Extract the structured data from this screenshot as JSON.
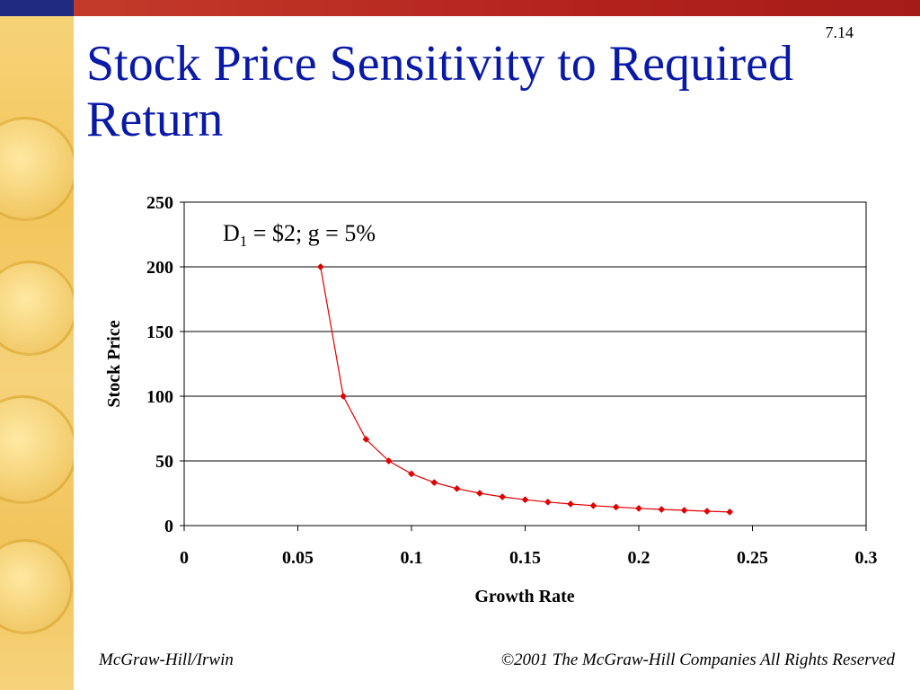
{
  "slide": {
    "number": "7.14",
    "title": "Stock Price Sensitivity to Required Return",
    "footer_left": "McGraw-Hill/Irwin",
    "footer_right": "©2001 The McGraw-Hill Companies All Rights Reserved"
  },
  "colors": {
    "title": "#0a1aa8",
    "top_bar": "#b3231d",
    "corner": "#1f2a80",
    "side_band": "#f3c55b",
    "series": "#e00000"
  },
  "chart_data": {
    "type": "scatter",
    "title": "",
    "annotation": {
      "main_before": "D",
      "subscript": "1",
      "main_after": " = $2; g = 5%"
    },
    "xlabel": "Growth Rate",
    "ylabel": "Stock Price",
    "xlim": [
      0,
      0.3
    ],
    "ylim": [
      0,
      250
    ],
    "x_ticks": [
      0,
      0.05,
      0.1,
      0.15,
      0.2,
      0.25,
      0.3
    ],
    "x_tick_labels": [
      "0",
      "0.05",
      "0.1",
      "0.15",
      "0.2",
      "0.25",
      "0.3"
    ],
    "y_ticks": [
      0,
      50,
      100,
      150,
      200,
      250
    ],
    "y_tick_labels": [
      "0",
      "50",
      "100",
      "150",
      "200",
      "250"
    ],
    "grid": "horizontal",
    "legend": "none",
    "series": [
      {
        "x": [
          0.06,
          0.07,
          0.08,
          0.09,
          0.1,
          0.11,
          0.12,
          0.13,
          0.14,
          0.15,
          0.16,
          0.17,
          0.18,
          0.19,
          0.2,
          0.21,
          0.22,
          0.23,
          0.24
        ],
        "values": [
          200,
          100,
          66.7,
          50,
          40,
          33.3,
          28.6,
          25,
          22.2,
          20,
          18.2,
          16.7,
          15.4,
          14.3,
          13.3,
          12.5,
          11.8,
          11.1,
          10.5
        ]
      }
    ]
  }
}
